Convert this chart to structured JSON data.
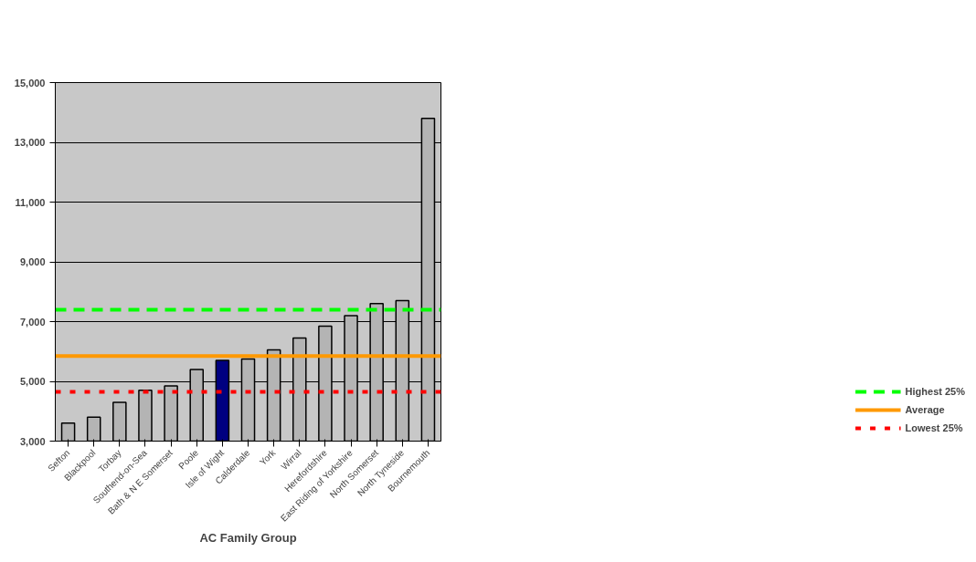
{
  "chart_data": {
    "type": "bar",
    "xlabel": "AC Family Group",
    "categories": [
      "Sefton",
      "Blackpool",
      "Torbay",
      "Southend-on-Sea",
      "Bath & N E Somerset",
      "Poole",
      "Isle of Wight",
      "Calderdale",
      "York",
      "Wirral",
      "Herefordshire",
      "East Riding of Yorkshire",
      "North Somerset",
      "North Tyneside",
      "Bournemouth"
    ],
    "values": [
      3600,
      3800,
      4300,
      4700,
      4850,
      5400,
      5700,
      5750,
      6050,
      6450,
      6850,
      7200,
      7600,
      7700,
      13800
    ],
    "colors": [
      "#b4b4b4",
      "#b4b4b4",
      "#b4b4b4",
      "#b4b4b4",
      "#b4b4b4",
      "#b4b4b4",
      "#000080",
      "#b4b4b4",
      "#b4b4b4",
      "#b4b4b4",
      "#b4b4b4",
      "#b4b4b4",
      "#b4b4b4",
      "#b4b4b4",
      "#b4b4b4"
    ],
    "ylim": [
      3000,
      15000
    ],
    "yticks": [
      {
        "value": 3000,
        "label": "3,000"
      },
      {
        "value": 5000,
        "label": "5,000"
      },
      {
        "value": 7000,
        "label": "7,000"
      },
      {
        "value": 9000,
        "label": "9,000"
      },
      {
        "value": 11000,
        "label": "11,000"
      },
      {
        "value": 13000,
        "label": "13,000"
      },
      {
        "value": 15000,
        "label": "15,000"
      }
    ],
    "grid": "y",
    "legend": "bottom right",
    "ref_lines": [
      {
        "axis": "y",
        "value": 7400,
        "label": "Highest 25%",
        "color": "#00ff00",
        "line_style": "dashed"
      },
      {
        "axis": "y",
        "value": 5850,
        "label": "Average",
        "color": "#ff9900",
        "line_style": "solid"
      },
      {
        "axis": "y",
        "value": 4650,
        "label": "Lowest 25%",
        "color": "#ff0000",
        "line_style": "dotted"
      }
    ]
  }
}
